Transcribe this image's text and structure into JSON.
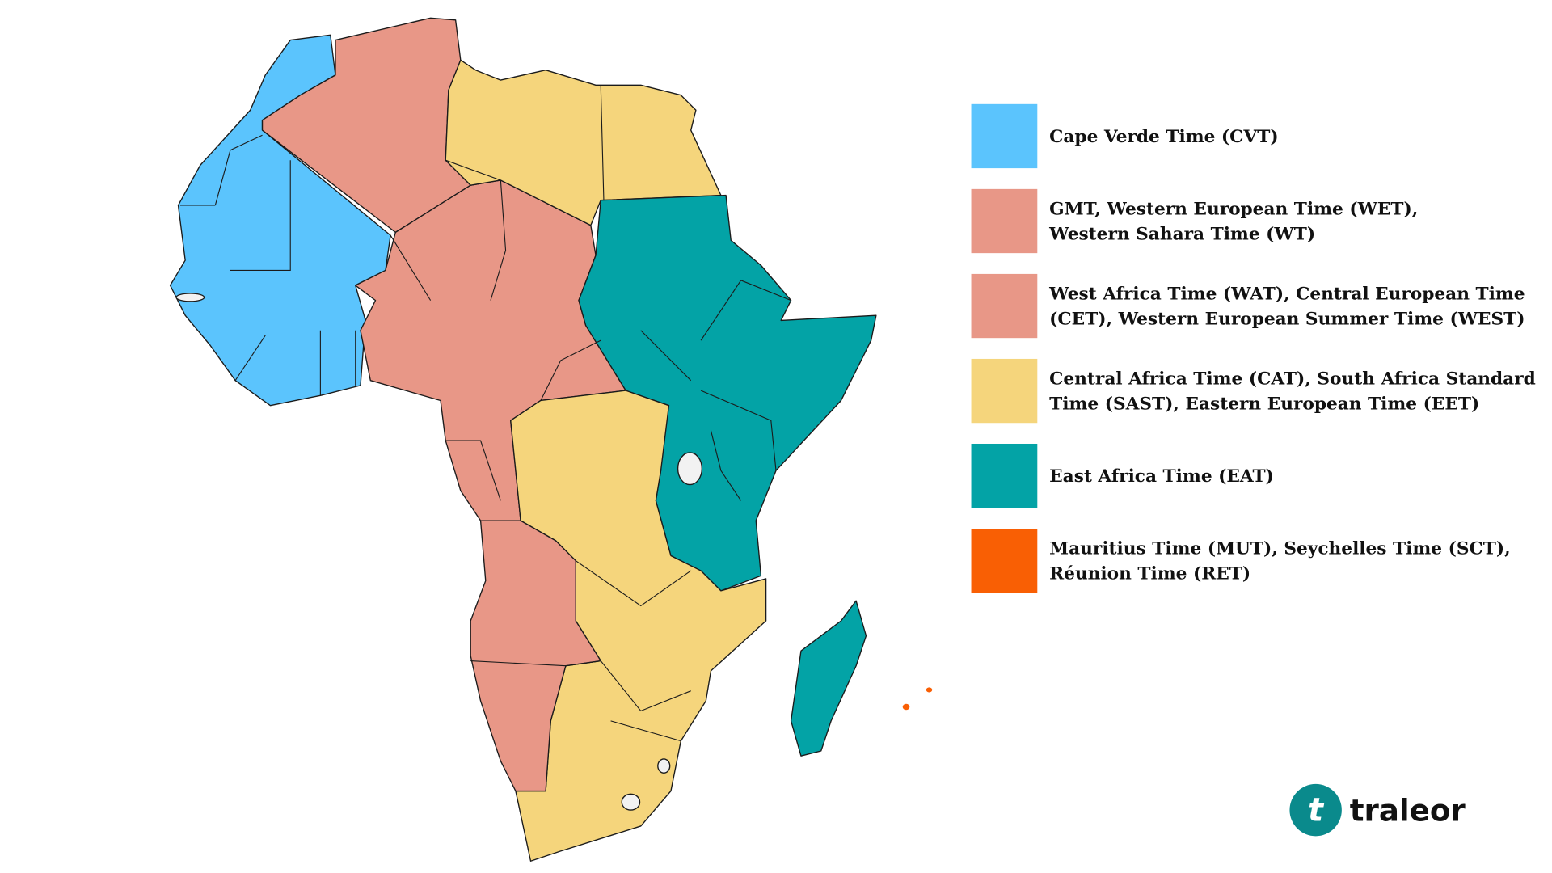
{
  "legend": [
    {
      "lines": [
        "Cape Verde Time (CVT)"
      ],
      "color": "#5bc4fd"
    },
    {
      "lines": [
        "GMT, Western European Time (WET),",
        "Western Sahara Time (WT)"
      ],
      "color": "#e89787"
    },
    {
      "lines": [
        "West Africa Time (WAT), Central European Time",
        "(CET), Western European Summer Time (WEST)"
      ],
      "color": "#e89787"
    },
    {
      "lines": [
        "Central Africa Time (CAT), South Africa Standard",
        "Time (SAST), Eastern European Time (EET)"
      ],
      "color": "#f5d57c"
    },
    {
      "lines": [
        "East Africa Time (EAT)"
      ],
      "color": "#03a3a6"
    },
    {
      "lines": [
        "Mauritius Time (MUT), Seychelles Time (SCT),",
        "Réunion Time (RET)"
      ],
      "color": "#f95f04"
    }
  ],
  "brand": {
    "icon": "t",
    "name": "traleor"
  }
}
